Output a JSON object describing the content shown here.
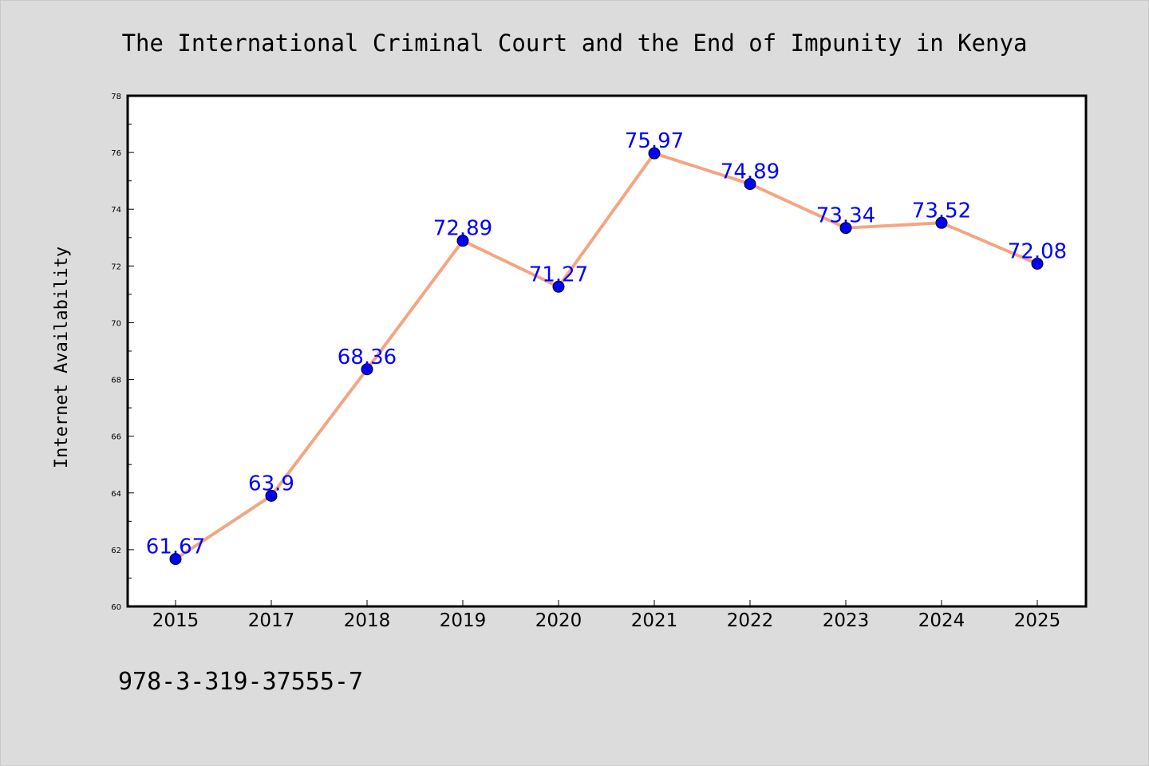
{
  "chart_data": {
    "type": "line",
    "title": "The International Criminal Court and the End of Impunity in Kenya",
    "xlabel": "",
    "ylabel": "Internet Availability",
    "categories": [
      "2015",
      "2017",
      "2018",
      "2019",
      "2020",
      "2021",
      "2022",
      "2023",
      "2024",
      "2025"
    ],
    "series": [
      {
        "values": [
          61.67,
          63.9,
          68.36,
          72.89,
          71.27,
          75.97,
          74.89,
          73.34,
          73.52,
          72.08
        ],
        "labels": [
          "61.67",
          "63.9",
          "68.36",
          "72.89",
          "71.27",
          "75.97",
          "74.89",
          "73.34",
          "73.52",
          "72.08"
        ]
      }
    ],
    "ylim": [
      60,
      78
    ],
    "yticks": [
      "60",
      "62",
      "64",
      "66",
      "68",
      "70",
      "72",
      "74",
      "76",
      "78"
    ],
    "grid": false,
    "legend": "none"
  },
  "colors": {
    "background": "#dcdcdc",
    "plot_background": "#ffffff",
    "line": "#f4a582",
    "marker": "#0000ff",
    "data_label": "#0000ff"
  },
  "footer": {
    "isbn": "978-3-319-37555-7"
  }
}
